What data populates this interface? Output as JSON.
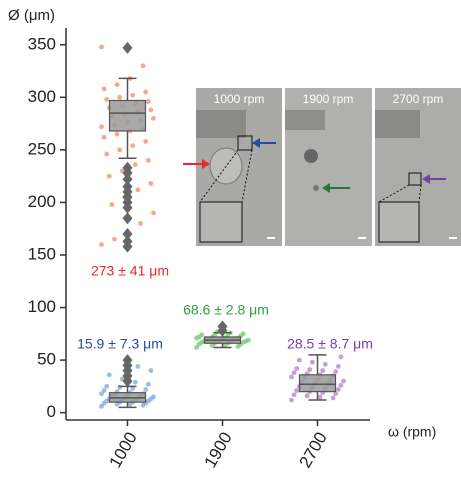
{
  "chart_data": {
    "type": "box",
    "y_label": "Ø (μm)",
    "x_label": "ω (rpm)",
    "categories": [
      "1000",
      "1900",
      "2700"
    ],
    "ylim": [
      -7,
      365
    ],
    "yticks": [
      0,
      50,
      100,
      150,
      200,
      250,
      300,
      350
    ],
    "boxes": [
      [
        {
          "whislo": 242,
          "q1": 268,
          "med": 285,
          "q3": 297,
          "whishi": 318,
          "fliers": [
            347,
            233,
            228,
            222,
            215,
            210,
            205,
            200,
            195,
            185,
            170,
            163,
            158
          ],
          "color": "#f08c6a",
          "points": [
            348,
            330,
            318,
            312,
            308,
            305,
            302,
            300,
            298,
            296,
            294,
            292,
            290,
            288,
            286,
            284,
            282,
            280,
            278,
            276,
            274,
            272,
            270,
            268,
            265,
            262,
            258,
            254,
            250,
            246,
            240,
            236,
            230,
            225,
            218,
            212,
            205,
            198,
            190,
            180,
            172,
            165,
            160
          ]
        },
        {
          "whislo": 5,
          "q1": 10,
          "med": 14,
          "q3": 19,
          "whishi": 25,
          "fliers": [
            30,
            35,
            40,
            45,
            50
          ],
          "color": "#7fa7d8",
          "points": [
            6,
            7,
            8,
            8,
            9,
            9,
            10,
            10,
            11,
            11,
            12,
            12,
            13,
            13,
            14,
            14,
            15,
            15,
            16,
            16,
            17,
            18,
            18,
            19,
            20,
            21,
            22,
            23,
            24,
            25,
            27,
            29,
            32,
            36,
            40,
            44
          ]
        }
      ],
      [
        {
          "whislo": 62,
          "q1": 66,
          "med": 69,
          "q3": 72,
          "whishi": 76,
          "fliers": [
            78,
            82
          ],
          "color": "#6fc96a",
          "points": [
            62,
            63,
            64,
            64,
            65,
            65,
            66,
            66,
            67,
            67,
            67,
            68,
            68,
            68,
            69,
            69,
            69,
            69,
            70,
            70,
            70,
            71,
            71,
            71,
            72,
            72,
            73,
            73,
            74,
            74,
            75,
            76,
            77
          ]
        }
      ],
      [
        {
          "whislo": 12,
          "q1": 20,
          "med": 27,
          "q3": 36,
          "whishi": 55,
          "fliers": [],
          "color": "#b07fd0",
          "points": [
            12,
            14,
            15,
            16,
            17,
            18,
            19,
            20,
            21,
            22,
            23,
            24,
            25,
            26,
            27,
            28,
            29,
            30,
            31,
            32,
            33,
            34,
            35,
            36,
            37,
            38,
            39,
            40,
            41,
            42,
            44,
            46,
            48,
            50,
            53
          ]
        }
      ]
    ],
    "annotations": [
      {
        "text": "273 ± 41 μm",
        "color": "#e8282b"
      },
      {
        "text": "15.9 ± 7.3 μm",
        "color": "#2a4aa0"
      },
      {
        "text": "68.6 ± 2.8 μm",
        "color": "#2ea043"
      },
      {
        "text": "28.5 ± 8.7 μm",
        "color": "#7b3fa0"
      }
    ],
    "insets": [
      "1000 rpm",
      "1900 rpm",
      "2700 rpm"
    ]
  }
}
